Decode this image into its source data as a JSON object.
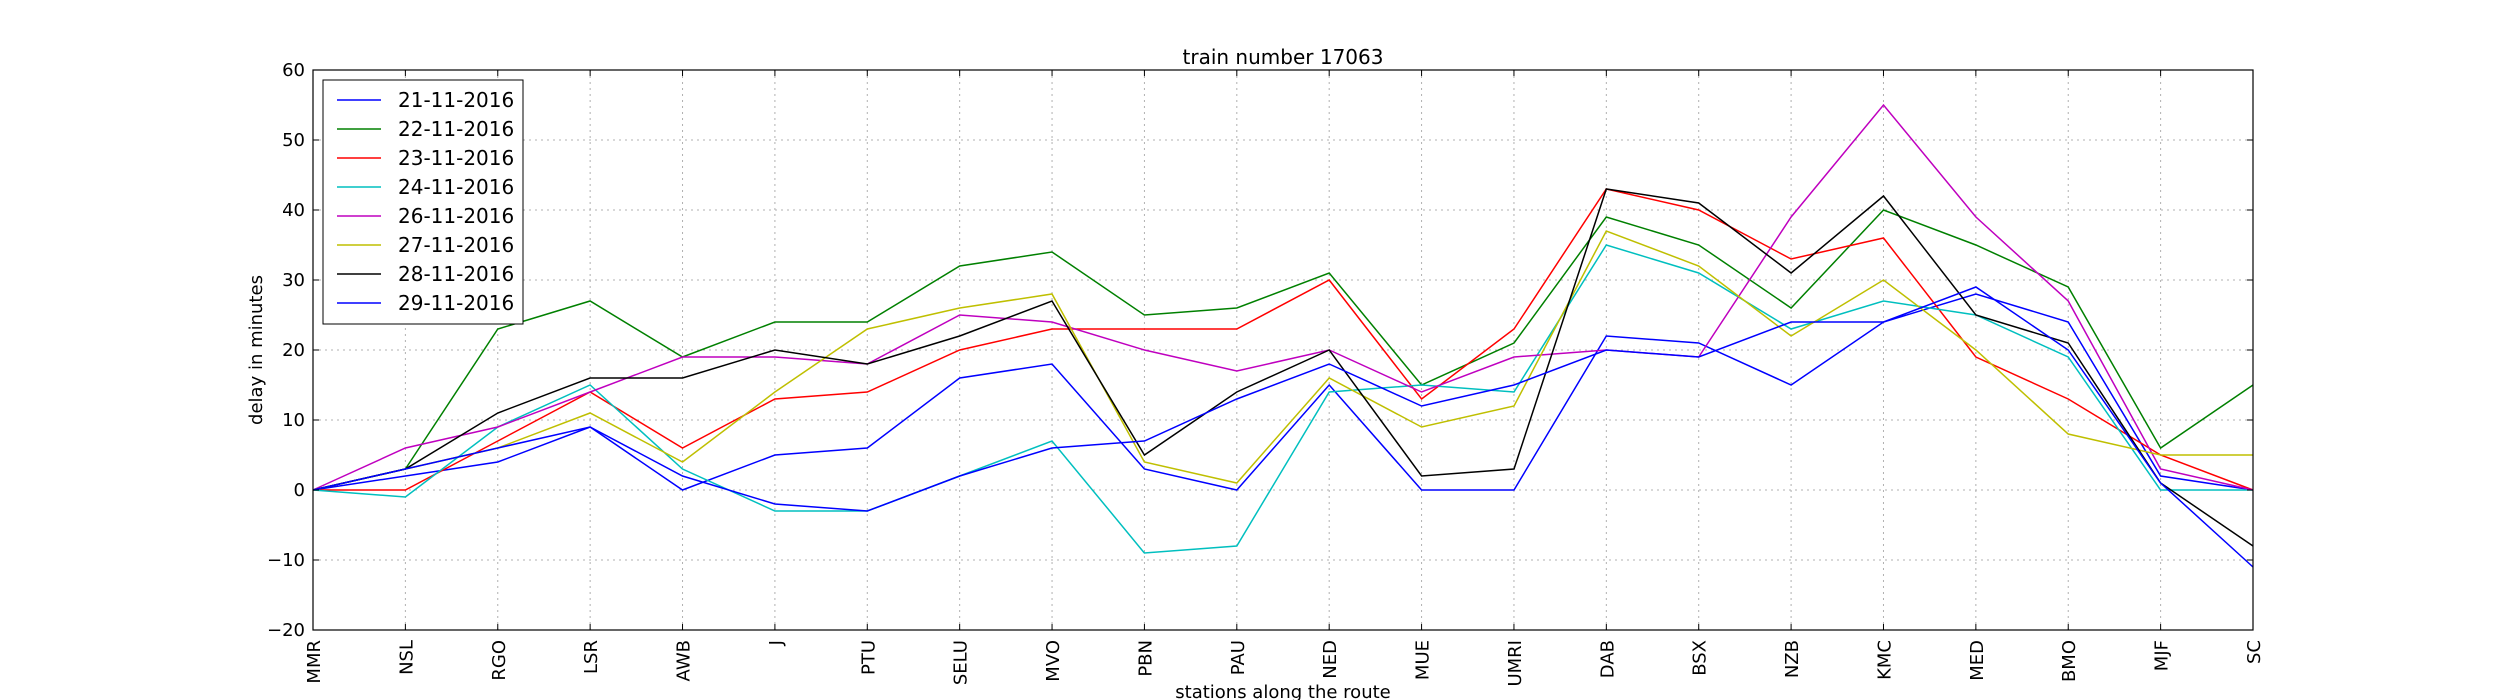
{
  "chart_data": {
    "type": "line",
    "title": "train number 17063",
    "xlabel": "stations along the route",
    "ylabel": "delay in minutes",
    "ylim": [
      -20,
      60
    ],
    "yticks": [
      -20,
      -10,
      0,
      10,
      20,
      30,
      40,
      50,
      60
    ],
    "grid": true,
    "legend_position": "top-left",
    "categories": [
      "MMR",
      "NSL",
      "RGO",
      "LSR",
      "AWB",
      "J",
      "PTU",
      "SELU",
      "MVO",
      "PBN",
      "PAU",
      "NED",
      "MUE",
      "UMRI",
      "DAB",
      "BSX",
      "NZB",
      "KMC",
      "MED",
      "BMO",
      "MJF",
      "SC"
    ],
    "series": [
      {
        "name": "21-11-2016",
        "color": "#0000ff",
        "values": [
          0,
          2,
          4,
          9,
          0,
          5,
          6,
          16,
          18,
          3,
          0,
          15,
          0,
          0,
          22,
          21,
          15,
          24,
          28,
          24,
          2,
          0
        ]
      },
      {
        "name": "22-11-2016",
        "color": "#008000",
        "values": [
          0,
          3,
          23,
          27,
          19,
          24,
          24,
          32,
          34,
          25,
          26,
          31,
          15,
          21,
          39,
          35,
          26,
          40,
          35,
          29,
          6,
          15
        ]
      },
      {
        "name": "23-11-2016",
        "color": "#ff0000",
        "values": [
          0,
          0,
          7,
          14,
          6,
          13,
          14,
          20,
          23,
          23,
          23,
          30,
          13,
          23,
          43,
          40,
          33,
          36,
          19,
          13,
          5,
          0
        ]
      },
      {
        "name": "24-11-2016",
        "color": "#00bfbf",
        "values": [
          0,
          -1,
          9,
          15,
          3,
          -3,
          -3,
          2,
          7,
          -9,
          -8,
          14,
          15,
          14,
          35,
          31,
          23,
          27,
          25,
          19,
          0,
          0
        ]
      },
      {
        "name": "26-11-2016",
        "color": "#bf00bf",
        "values": [
          0,
          6,
          9,
          14,
          19,
          19,
          18,
          25,
          24,
          20,
          17,
          20,
          14,
          19,
          20,
          19,
          39,
          55,
          39,
          27,
          3,
          0
        ]
      },
      {
        "name": "27-11-2016",
        "color": "#bfbf00",
        "values": [
          0,
          3,
          6,
          11,
          4,
          14,
          23,
          26,
          28,
          4,
          1,
          16,
          9,
          12,
          37,
          32,
          22,
          30,
          20,
          8,
          5,
          5
        ]
      },
      {
        "name": "28-11-2016",
        "color": "#000000",
        "values": [
          0,
          3,
          11,
          16,
          16,
          20,
          18,
          22,
          27,
          5,
          14,
          20,
          2,
          3,
          43,
          41,
          31,
          42,
          25,
          21,
          1,
          -8
        ]
      },
      {
        "name": "29-11-2016",
        "color": "#0000ff",
        "values": [
          0,
          3,
          6,
          9,
          2,
          -2,
          -3,
          2,
          6,
          7,
          13,
          18,
          12,
          15,
          20,
          19,
          24,
          24,
          29,
          20,
          1,
          -11
        ]
      }
    ]
  }
}
